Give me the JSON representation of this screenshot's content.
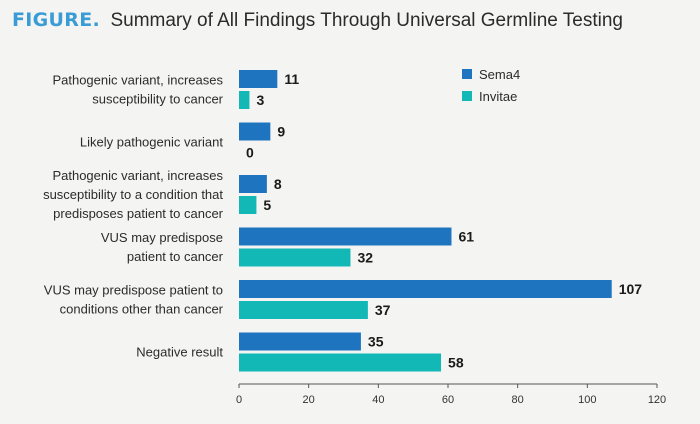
{
  "header": {
    "figure_tag": "FIGURE.",
    "title": "Summary of All Findings Through Universal Germline Testing"
  },
  "chart_data": {
    "type": "bar",
    "orientation": "horizontal",
    "title": "Summary of All Findings Through Universal Germline Testing",
    "categories": [
      [
        "Pathogenic variant, increases",
        "susceptibility to cancer"
      ],
      [
        "Likely pathogenic variant"
      ],
      [
        "Pathogenic variant, increases",
        "susceptibility to a condition that",
        "predisposes patient to cancer"
      ],
      [
        "VUS may predispose",
        "patient to cancer"
      ],
      [
        "VUS may predispose patient to",
        "conditions other than cancer"
      ],
      [
        "Negative result"
      ]
    ],
    "series": [
      {
        "name": "Sema4",
        "color": "#1f74c0",
        "values": [
          11,
          9,
          8,
          61,
          107,
          35
        ]
      },
      {
        "name": "Invitae",
        "color": "#12b8b5",
        "values": [
          3,
          0,
          5,
          32,
          37,
          58
        ]
      }
    ],
    "xlim": [
      0,
      120
    ],
    "xticks": [
      0,
      20,
      40,
      60,
      80,
      100,
      120
    ],
    "legend_position": "top-right",
    "grid": false
  }
}
